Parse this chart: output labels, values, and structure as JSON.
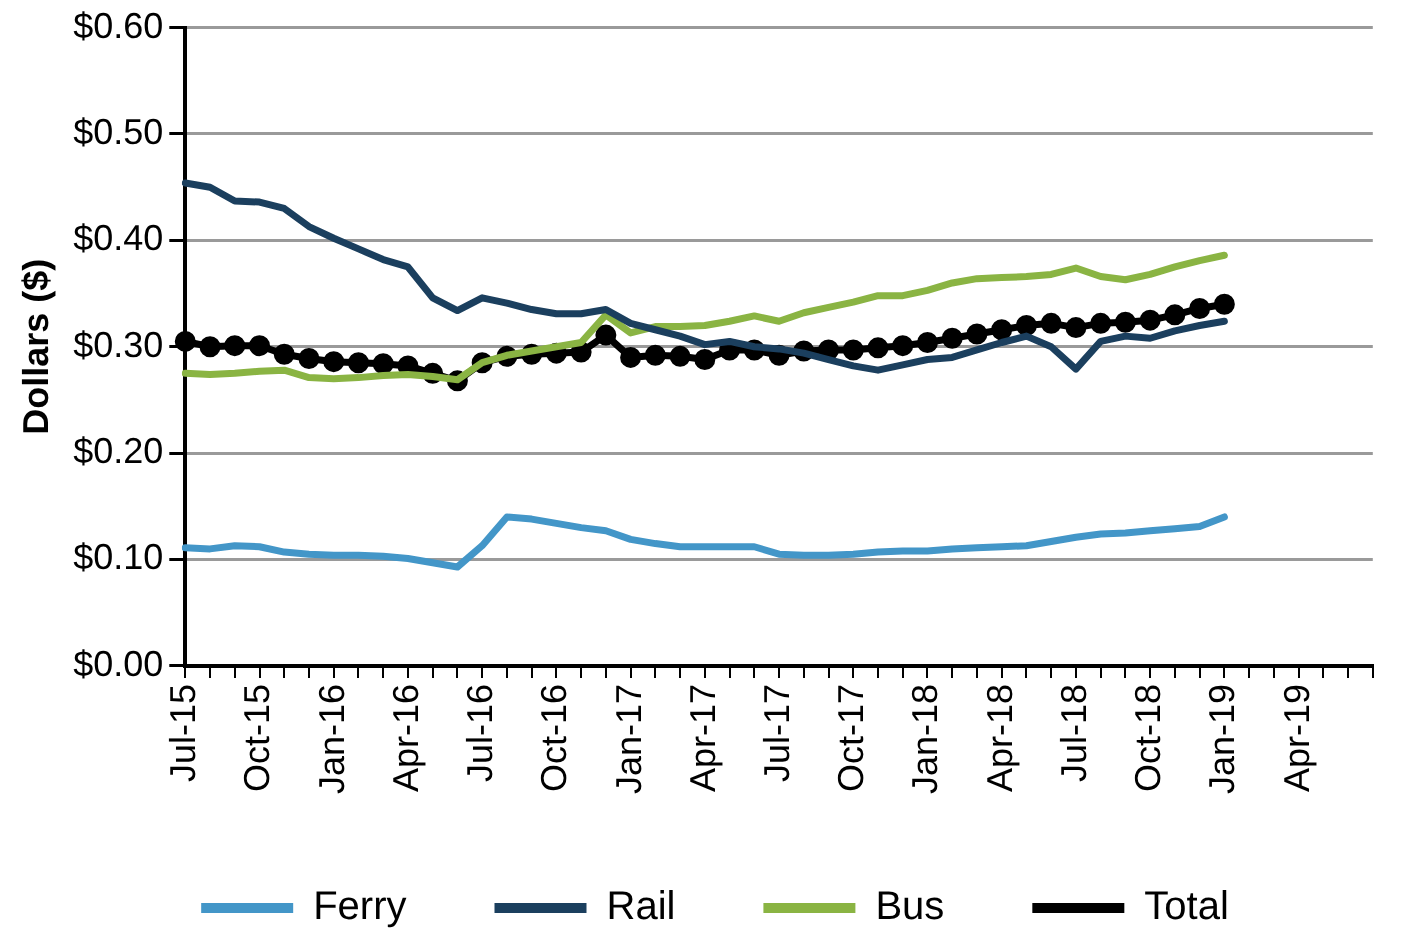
{
  "chart_data": {
    "type": "line",
    "ylabel": "Dollars ($)",
    "categories": [
      "Jul-15",
      null,
      null,
      "Oct-15",
      null,
      null,
      "Jan-16",
      null,
      null,
      "Apr-16",
      null,
      null,
      "Jul-16",
      null,
      null,
      "Oct-16",
      null,
      null,
      "Jan-17",
      null,
      null,
      "Apr-17",
      null,
      null,
      "Jul-17",
      null,
      null,
      "Oct-17",
      null,
      null,
      "Jan-18",
      null,
      null,
      "Apr-18",
      null,
      null,
      "Jul-18",
      null,
      null,
      "Oct-18",
      null,
      null,
      "Jan-19",
      null,
      null,
      "Apr-19",
      null,
      null,
      null
    ],
    "series": [
      {
        "name": "Ferry",
        "color": "#4396c8",
        "marker": "none",
        "values": [
          0.111,
          0.11,
          0.113,
          0.112,
          0.107,
          0.105,
          0.104,
          0.104,
          0.103,
          0.101,
          0.097,
          0.093,
          0.113,
          0.14,
          0.138,
          0.134,
          0.13,
          0.127,
          0.119,
          0.115,
          0.112,
          0.112,
          0.112,
          0.112,
          0.105,
          0.104,
          0.104,
          0.105,
          0.107,
          0.108,
          0.108,
          0.11,
          0.111,
          0.112,
          0.113,
          0.117,
          0.121,
          0.124,
          0.125,
          0.127,
          0.129,
          0.131,
          0.14,
          null,
          null,
          null,
          null,
          null,
          null
        ]
      },
      {
        "name": "Rail",
        "color": "#1b3f5e",
        "marker": "none",
        "values": [
          0.454,
          0.45,
          0.437,
          0.436,
          0.43,
          0.413,
          0.402,
          0.392,
          0.382,
          0.375,
          0.346,
          0.334,
          0.346,
          0.341,
          0.335,
          0.331,
          0.331,
          0.335,
          0.322,
          0.316,
          0.31,
          0.302,
          0.305,
          0.3,
          0.298,
          0.294,
          0.288,
          0.282,
          0.278,
          0.283,
          0.288,
          0.29,
          0.297,
          0.304,
          0.31,
          0.3,
          0.279,
          0.305,
          0.31,
          0.308,
          0.315,
          0.32,
          0.324,
          null,
          null,
          null,
          null,
          null,
          null
        ]
      },
      {
        "name": "Bus",
        "color": "#8ab443",
        "marker": "none",
        "values": [
          0.275,
          0.274,
          0.275,
          0.277,
          0.278,
          0.271,
          0.27,
          0.271,
          0.273,
          0.274,
          0.272,
          0.269,
          0.285,
          0.292,
          0.296,
          0.3,
          0.304,
          0.33,
          0.313,
          0.319,
          0.319,
          0.32,
          0.324,
          0.329,
          0.324,
          0.332,
          0.337,
          0.342,
          0.348,
          0.348,
          0.353,
          0.36,
          0.364,
          0.365,
          0.366,
          0.368,
          0.374,
          0.366,
          0.363,
          0.368,
          0.375,
          0.381,
          0.386,
          null,
          null,
          null,
          null,
          null,
          null
        ]
      },
      {
        "name": "Total",
        "color": "#000000",
        "marker": "circle",
        "values": [
          0.305,
          0.3,
          0.301,
          0.301,
          0.293,
          0.289,
          0.286,
          0.285,
          0.284,
          0.282,
          0.275,
          0.268,
          0.285,
          0.291,
          0.293,
          0.294,
          0.295,
          0.311,
          0.29,
          0.292,
          0.291,
          0.288,
          0.297,
          0.297,
          0.292,
          0.296,
          0.297,
          0.297,
          0.299,
          0.301,
          0.304,
          0.308,
          0.312,
          0.316,
          0.32,
          0.322,
          0.318,
          0.322,
          0.323,
          0.325,
          0.33,
          0.336,
          0.34,
          null,
          null,
          null,
          null,
          null,
          null
        ]
      }
    ],
    "ylim": [
      0,
      0.6
    ],
    "yticks": [
      {
        "value": 0,
        "label": "$0.00"
      },
      {
        "value": 0.1,
        "label": "$0.10"
      },
      {
        "value": 0.2,
        "label": "$0.20"
      },
      {
        "value": 0.3,
        "label": "$0.30"
      },
      {
        "value": 0.4,
        "label": "$0.40"
      },
      {
        "value": 0.5,
        "label": "$0.50"
      },
      {
        "value": 0.6,
        "label": "$0.60"
      }
    ],
    "grid": "y",
    "legend": "bottom",
    "line_style": "solid"
  }
}
